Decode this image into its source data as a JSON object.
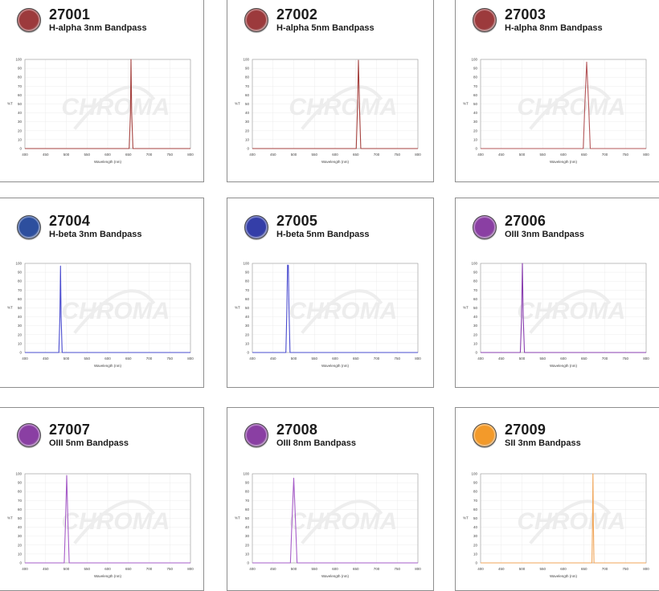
{
  "axes": {
    "xlabel": "Wavelength (nm)",
    "ylabel": "%T",
    "xticks": [
      400,
      450,
      500,
      550,
      600,
      650,
      700,
      750,
      800
    ],
    "yticks": [
      0,
      10,
      20,
      30,
      40,
      50,
      60,
      70,
      80,
      90,
      100
    ],
    "xlim": [
      400,
      800
    ],
    "ylim": [
      0,
      100
    ]
  },
  "watermark": "CHROMA",
  "filters": [
    {
      "code": "27001",
      "name": "H-alpha 3nm Bandpass",
      "color": "#9c3a3c"
    },
    {
      "code": "27002",
      "name": "H-alpha 5nm Bandpass",
      "color": "#9c3a3c"
    },
    {
      "code": "27003",
      "name": "H-alpha 8nm Bandpass",
      "color": "#9c3a3c"
    },
    {
      "code": "27004",
      "name": "H-beta 3nm Bandpass",
      "color": "#2d4f9e"
    },
    {
      "code": "27005",
      "name": "H-beta 5nm Bandpass",
      "color": "#343ea8"
    },
    {
      "code": "27006",
      "name": "OIII 3nm Bandpass",
      "color": "#8a3fa3"
    },
    {
      "code": "27007",
      "name": "OIII 5nm Bandpass",
      "color": "#8a3fa3"
    },
    {
      "code": "27008",
      "name": "OIII 8nm Bandpass",
      "color": "#8a3fa3"
    },
    {
      "code": "27009",
      "name": "SII 3nm Bandpass",
      "color": "#f39a2a"
    }
  ],
  "chart_data": [
    {
      "type": "line",
      "xlabel": "Wavelength (nm)",
      "ylabel": "%T",
      "xlim": [
        400,
        800
      ],
      "ylim": [
        0,
        100
      ],
      "series": [
        {
          "x": [
            400,
            652,
            655,
            656.3,
            658,
            661,
            800
          ],
          "y": [
            0,
            0,
            40,
            100,
            40,
            0,
            0
          ],
          "color": "#a5423f"
        }
      ]
    },
    {
      "type": "line",
      "xlabel": "Wavelength (nm)",
      "ylabel": "%T",
      "xlim": [
        400,
        800
      ],
      "ylim": [
        0,
        100
      ],
      "series": [
        {
          "x": [
            400,
            651,
            654,
            656.3,
            659,
            662,
            800
          ],
          "y": [
            0,
            0,
            45,
            99,
            45,
            0,
            0
          ],
          "color": "#a5423f"
        }
      ]
    },
    {
      "type": "line",
      "xlabel": "Wavelength (nm)",
      "ylabel": "%T",
      "xlim": [
        400,
        800
      ],
      "ylim": [
        0,
        100
      ],
      "series": [
        {
          "x": [
            400,
            648,
            652,
            656.3,
            661,
            665,
            800
          ],
          "y": [
            0,
            0,
            50,
            97,
            50,
            0,
            0
          ],
          "color": "#b4575a"
        }
      ]
    },
    {
      "type": "line",
      "xlabel": "Wavelength (nm)",
      "ylabel": "%T",
      "xlim": [
        400,
        800
      ],
      "ylim": [
        0,
        100
      ],
      "series": [
        {
          "x": [
            400,
            482,
            484.5,
            486,
            487.5,
            490,
            800
          ],
          "y": [
            0,
            0,
            40,
            97,
            40,
            0,
            0
          ],
          "color": "#4a4ccf"
        }
      ]
    },
    {
      "type": "line",
      "xlabel": "Wavelength (nm)",
      "ylabel": "%T",
      "xlim": [
        400,
        800
      ],
      "ylim": [
        0,
        100
      ],
      "series": [
        {
          "x": [
            400,
            481,
            483.5,
            485,
            486,
            487,
            488.5,
            491,
            800
          ],
          "y": [
            0,
            0,
            50,
            98,
            97,
            98,
            50,
            0,
            0
          ],
          "color": "#4a4ccf"
        }
      ]
    },
    {
      "type": "line",
      "xlabel": "Wavelength (nm)",
      "ylabel": "%T",
      "xlim": [
        400,
        800
      ],
      "ylim": [
        0,
        100
      ],
      "series": [
        {
          "x": [
            400,
            496,
            499,
            501,
            503,
            506,
            800
          ],
          "y": [
            0,
            0,
            40,
            100,
            40,
            0,
            0
          ],
          "color": "#8a3fb0"
        }
      ]
    },
    {
      "type": "line",
      "xlabel": "Wavelength (nm)",
      "ylabel": "%T",
      "xlim": [
        400,
        800
      ],
      "ylim": [
        0,
        100
      ],
      "series": [
        {
          "x": [
            400,
            495,
            498,
            501,
            504,
            507,
            800
          ],
          "y": [
            0,
            0,
            45,
            98,
            45,
            0,
            0
          ],
          "color": "#a65cc8"
        }
      ]
    },
    {
      "type": "line",
      "xlabel": "Wavelength (nm)",
      "ylabel": "%T",
      "xlim": [
        400,
        800
      ],
      "ylim": [
        0,
        100
      ],
      "series": [
        {
          "x": [
            400,
            492,
            496,
            500,
            504,
            508,
            800
          ],
          "y": [
            0,
            0,
            50,
            95,
            50,
            0,
            0
          ],
          "color": "#a65cc8"
        }
      ]
    },
    {
      "type": "line",
      "xlabel": "Wavelength (nm)",
      "ylabel": "%T",
      "xlim": [
        400,
        800
      ],
      "ylim": [
        0,
        100
      ],
      "series": [
        {
          "x": [
            400,
            669,
            670.5,
            671.5,
            672.5,
            674,
            800
          ],
          "y": [
            0,
            0,
            45,
            100,
            45,
            0,
            0
          ],
          "color": "#f0a65a"
        }
      ]
    }
  ]
}
